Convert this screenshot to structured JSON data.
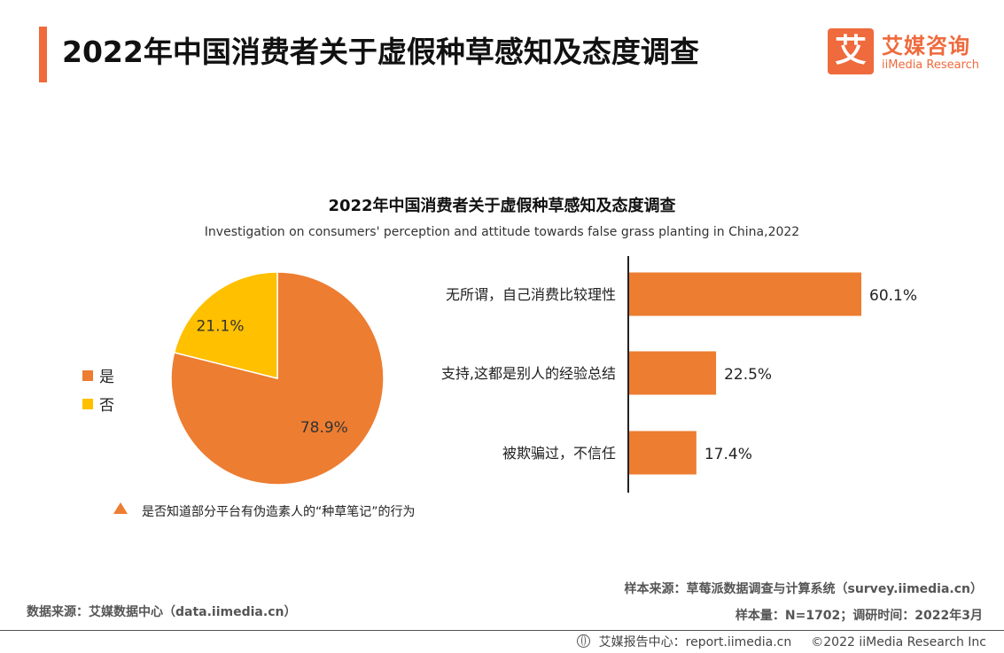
{
  "header": {
    "title": "2022年中国消费者关于虚假种草感知及态度调查",
    "logo_glyph": "艾",
    "logo_cn": "艾媒咨询",
    "logo_en": "iiMedia Research"
  },
  "colors": {
    "accent": "#ef6a3c",
    "orange": "#ed7d31",
    "yellow": "#ffc000"
  },
  "chart_data": [
    {
      "type": "pie",
      "title": "2022年中国消费者关于虚假种草感知及态度调查",
      "subtitle": "Investigation on consumers' perception and attitude towards false grass planting in China,2022",
      "categories": [
        "是",
        "否"
      ],
      "values": [
        78.9,
        21.1
      ],
      "labels": [
        "78.9%",
        "21.1%"
      ],
      "colors": [
        "#ed7d31",
        "#ffc000"
      ],
      "legend_position": "left",
      "note": "是否知道部分平台有伪造素人的“种草笔记”的行为"
    },
    {
      "type": "bar",
      "orientation": "horizontal",
      "categories": [
        "无所谓，自己消费比较理性",
        "支持,这都是别人的经验总结",
        "被欺骗过，不信任"
      ],
      "values": [
        60.1,
        22.5,
        17.4
      ],
      "labels": [
        "60.1%",
        "22.5%",
        "17.4%"
      ],
      "color": "#ed7d31"
    }
  ],
  "sources": {
    "left": "数据来源：艾媒数据中心（data.iimedia.cn）",
    "right_line1": "样本来源：草莓派数据调查与计算系统（survey.iimedia.cn）",
    "right_line2": "样本量：N=1702；调研时间：2022年3月"
  },
  "footer": {
    "report_center": "艾媒报告中心：report.iimedia.cn",
    "copyright": "©2022  iiMedia Research  Inc"
  }
}
